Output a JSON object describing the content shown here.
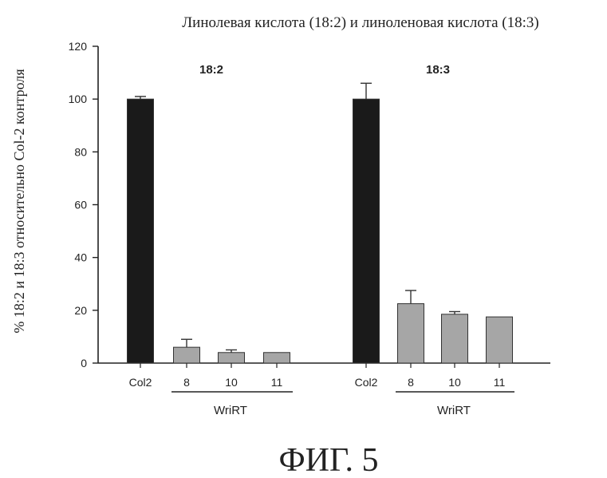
{
  "chart_data": {
    "type": "bar",
    "title": "Линолевая кислота (18:2) и линоленовая кислота (18:3)",
    "ylabel": "% 18:2 и 18:3 относительно Col-2 контроля",
    "xlabel": "",
    "ylim": [
      0,
      120
    ],
    "yticks": [
      0,
      20,
      40,
      60,
      80,
      100,
      120
    ],
    "grid": false,
    "groups": [
      {
        "label": "18:2",
        "group_label": "WriRT",
        "categories": [
          "Col2",
          "8",
          "10",
          "11"
        ],
        "values": [
          100,
          6,
          4,
          4
        ],
        "errors": [
          1,
          3,
          1,
          0
        ],
        "colors": [
          "#1a1a1a",
          "#a6a6a6",
          "#a6a6a6",
          "#a6a6a6"
        ]
      },
      {
        "label": "18:3",
        "group_label": "WriRT",
        "categories": [
          "Col2",
          "8",
          "10",
          "11"
        ],
        "values": [
          100,
          22.5,
          18.5,
          17.5
        ],
        "errors": [
          6,
          5,
          1,
          0
        ],
        "colors": [
          "#1a1a1a",
          "#a6a6a6",
          "#a6a6a6",
          "#a6a6a6"
        ]
      }
    ]
  },
  "caption": "ФИГ. 5"
}
